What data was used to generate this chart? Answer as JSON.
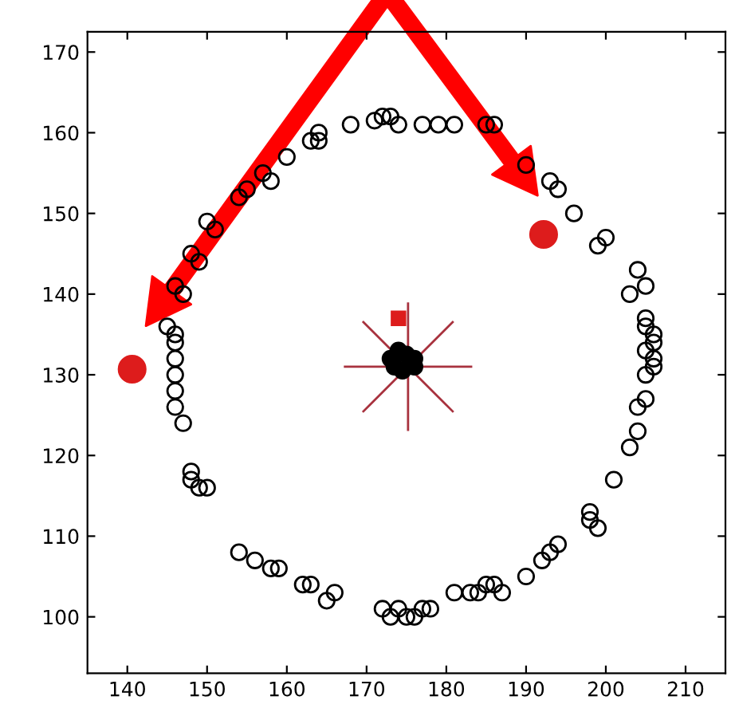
{
  "chart_data": {
    "type": "scatter",
    "xlim": [
      135,
      215
    ],
    "ylim": [
      93,
      172.5
    ],
    "xticks": [
      140,
      150,
      160,
      170,
      180,
      190,
      200,
      210
    ],
    "yticks": [
      100,
      110,
      120,
      130,
      140,
      150,
      160,
      170
    ],
    "grid": false,
    "legend": false,
    "series": [
      {
        "color": "#000000",
        "marker": "circle",
        "x": [
          172,
          173,
          171,
          174,
          177,
          179,
          181,
          185,
          186,
          168,
          164,
          163,
          164,
          160,
          157,
          158,
          155,
          154,
          150,
          151,
          148,
          149,
          146,
          147,
          145,
          190,
          193,
          194,
          196,
          200,
          199,
          204,
          205,
          203,
          205,
          205,
          206,
          206,
          205,
          206,
          206,
          205,
          204,
          205,
          204,
          203,
          201,
          198,
          198,
          199,
          193,
          194,
          192,
          190,
          186,
          187,
          185,
          184,
          183,
          181,
          177,
          176,
          174,
          173,
          172,
          175,
          178,
          166,
          165,
          163,
          162,
          158,
          159,
          156,
          154,
          149,
          148,
          150,
          148,
          147,
          146,
          146,
          146,
          146,
          146,
          146
        ],
        "values": [
          162,
          162,
          161.5,
          161,
          161,
          161,
          161,
          161,
          161,
          161,
          160,
          159,
          159,
          157,
          155,
          154,
          153,
          152,
          149,
          148,
          145,
          144,
          141,
          140,
          136,
          156,
          154,
          153,
          150,
          147,
          146,
          143,
          141,
          140,
          137,
          136,
          135,
          134,
          133,
          132,
          131,
          130,
          126,
          127,
          123,
          121,
          117,
          113,
          112,
          111,
          108,
          109,
          107,
          105,
          104,
          103,
          104,
          103,
          103,
          103,
          101,
          100,
          101,
          100,
          101,
          100,
          101,
          103,
          102,
          104,
          104,
          106,
          106,
          107,
          108,
          116,
          117,
          116,
          118,
          124,
          126,
          128,
          130,
          132,
          134,
          135
        ]
      },
      {
        "color": "#000000",
        "marker": "circle",
        "x": [
          173,
          174,
          175,
          176,
          176,
          174.5,
          173.5
        ],
        "values": [
          132,
          133,
          132.5,
          131,
          132,
          130.5,
          131
        ]
      },
      {
        "color": "#a8323e",
        "marker": "star",
        "x": [
          175.2
        ],
        "values": [
          131
        ]
      },
      {
        "color": "#dd1c1c",
        "marker": "square",
        "x": [
          174
        ],
        "values": [
          137
        ]
      },
      {
        "color": "#dd1c1c",
        "marker": "circle",
        "x": [
          140.6,
          192.2
        ],
        "values": [
          130.7,
          147.4
        ]
      }
    ]
  }
}
